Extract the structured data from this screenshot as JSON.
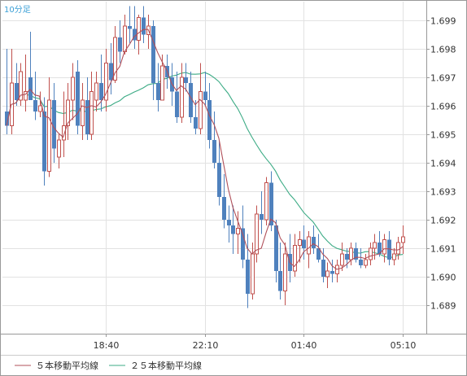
{
  "colors": {
    "up": "#c0504d",
    "down": "#4f81bd",
    "ma5": "#b0505a",
    "ma25": "#3cab85",
    "grid": "#e2e2e2",
    "frame": "#999999",
    "timeframe": "#3a9fd6"
  },
  "chart_data": {
    "type": "candlestick",
    "timeframe_label": "10分足",
    "ylim": [
      1.6882,
      1.6995
    ],
    "y_ticks": [
      "1.699",
      "1.698",
      "1.697",
      "1.696",
      "1.695",
      "1.694",
      "1.693",
      "1.692",
      "1.691",
      "1.690",
      "1.689"
    ],
    "x_ticks": [
      {
        "label": "18:40",
        "index": 21
      },
      {
        "label": "22:10",
        "index": 42
      },
      {
        "label": "01:40",
        "index": 63
      },
      {
        "label": "05:10",
        "index": 84
      }
    ],
    "legend": [
      {
        "label": "５本移動平均線",
        "color": "#b0505a"
      },
      {
        "label": "２５本移動平均線",
        "color": "#3cab85"
      }
    ],
    "candles": [
      [
        1.6958,
        1.698,
        1.695,
        1.6953
      ],
      [
        1.6953,
        1.698,
        1.695,
        1.6968
      ],
      [
        1.6968,
        1.6975,
        1.696,
        1.6962
      ],
      [
        1.6962,
        1.6975,
        1.696,
        1.6972
      ],
      [
        1.6962,
        1.6978,
        1.6958,
        1.6965
      ],
      [
        1.697,
        1.6986,
        1.6962,
        1.6962
      ],
      [
        1.6962,
        1.6972,
        1.6955,
        1.6958
      ],
      [
        1.6958,
        1.6965,
        1.6956,
        1.696
      ],
      [
        1.6958,
        1.6963,
        1.6932,
        1.6937
      ],
      [
        1.6937,
        1.697,
        1.6935,
        1.6962
      ],
      [
        1.6962,
        1.6968,
        1.694,
        1.6945
      ],
      [
        1.6942,
        1.695,
        1.6938,
        1.6948
      ],
      [
        1.6948,
        1.6965,
        1.6942,
        1.6953
      ],
      [
        1.6953,
        1.6968,
        1.6948,
        1.6962
      ],
      [
        1.6962,
        1.6975,
        1.6955,
        1.697
      ],
      [
        1.6972,
        1.6976,
        1.695,
        1.6953
      ],
      [
        1.6953,
        1.6968,
        1.6948,
        1.6962
      ],
      [
        1.6962,
        1.697,
        1.6948,
        1.695
      ],
      [
        1.695,
        1.6972,
        1.6948,
        1.6965
      ],
      [
        1.6962,
        1.6972,
        1.6958,
        1.6968
      ],
      [
        1.6968,
        1.6978,
        1.6958,
        1.6962
      ],
      [
        1.6962,
        1.698,
        1.6958,
        1.6975
      ],
      [
        1.6975,
        1.6982,
        1.6964,
        1.6969
      ],
      [
        1.6969,
        1.6988,
        1.6968,
        1.6984
      ],
      [
        1.6984,
        1.699,
        1.6975,
        1.6979
      ],
      [
        1.6979,
        1.6992,
        1.6978,
        1.6988
      ],
      [
        1.6988,
        1.6995,
        1.6982,
        1.6987
      ],
      [
        1.6987,
        1.6995,
        1.698,
        1.6983
      ],
      [
        1.6983,
        1.6992,
        1.6978,
        1.6991
      ],
      [
        1.6991,
        1.6995,
        1.6982,
        1.6985
      ],
      [
        1.6985,
        1.6992,
        1.698,
        1.6988
      ],
      [
        1.6988,
        1.699,
        1.6962,
        1.6968
      ],
      [
        1.6968,
        1.6975,
        1.6958,
        1.6962
      ],
      [
        1.6962,
        1.6978,
        1.6962,
        1.6974
      ],
      [
        1.6974,
        1.6978,
        1.6966,
        1.697
      ],
      [
        1.697,
        1.6975,
        1.696,
        1.6965
      ],
      [
        1.6965,
        1.6972,
        1.6954,
        1.6956
      ],
      [
        1.6956,
        1.6975,
        1.6954,
        1.697
      ],
      [
        1.697,
        1.6975,
        1.6965,
        1.6968
      ],
      [
        1.6968,
        1.6972,
        1.6954,
        1.6956
      ],
      [
        1.6956,
        1.6962,
        1.695,
        1.6952
      ],
      [
        1.6952,
        1.6975,
        1.695,
        1.6965
      ],
      [
        1.6965,
        1.6972,
        1.696,
        1.6962
      ],
      [
        1.6962,
        1.6968,
        1.6945,
        1.6948
      ],
      [
        1.6948,
        1.6958,
        1.6938,
        1.694
      ],
      [
        1.694,
        1.6948,
        1.6925,
        1.6928
      ],
      [
        1.6928,
        1.6936,
        1.6917,
        1.692
      ],
      [
        1.692,
        1.6925,
        1.6912,
        1.6918
      ],
      [
        1.6918,
        1.6925,
        1.6908,
        1.6915
      ],
      [
        1.6915,
        1.6923,
        1.6908,
        1.6917
      ],
      [
        1.6917,
        1.6925,
        1.6903,
        1.6906
      ],
      [
        1.6906,
        1.6915,
        1.6889,
        1.6894
      ],
      [
        1.6894,
        1.6912,
        1.6892,
        1.6908
      ],
      [
        1.6908,
        1.6925,
        1.6905,
        1.6922
      ],
      [
        1.6922,
        1.693,
        1.6915,
        1.692
      ],
      [
        1.692,
        1.6935,
        1.6918,
        1.6933
      ],
      [
        1.6933,
        1.6937,
        1.6916,
        1.6918
      ],
      [
        1.6918,
        1.692,
        1.6898,
        1.6902
      ],
      [
        1.6902,
        1.6912,
        1.6892,
        1.6895
      ],
      [
        1.6895,
        1.6912,
        1.689,
        1.6908
      ],
      [
        1.6908,
        1.6915,
        1.6898,
        1.6902
      ],
      [
        1.6902,
        1.6915,
        1.69,
        1.6911
      ],
      [
        1.6911,
        1.6916,
        1.6905,
        1.6913
      ],
      [
        1.6913,
        1.6918,
        1.6906,
        1.691
      ],
      [
        1.6908,
        1.6916,
        1.6903,
        1.6914
      ],
      [
        1.6914,
        1.6918,
        1.6908,
        1.691
      ],
      [
        1.691,
        1.6915,
        1.6905,
        1.6906
      ],
      [
        1.6906,
        1.691,
        1.6898,
        1.69
      ],
      [
        1.69,
        1.6905,
        1.6896,
        1.6902
      ],
      [
        1.6902,
        1.6906,
        1.6898,
        1.6901
      ],
      [
        1.6901,
        1.6906,
        1.6898,
        1.6904
      ],
      [
        1.6904,
        1.6912,
        1.6902,
        1.6908
      ],
      [
        1.6908,
        1.691,
        1.6903,
        1.6906
      ],
      [
        1.6906,
        1.6912,
        1.6904,
        1.691
      ],
      [
        1.691,
        1.6912,
        1.6905,
        1.6906
      ],
      [
        1.6906,
        1.691,
        1.6903,
        1.6904
      ],
      [
        1.6904,
        1.6908,
        1.6903,
        1.6906
      ],
      [
        1.6906,
        1.6912,
        1.6904,
        1.691
      ],
      [
        1.691,
        1.6915,
        1.6906,
        1.6912
      ],
      [
        1.6912,
        1.6916,
        1.6907,
        1.6908
      ],
      [
        1.6908,
        1.6915,
        1.6905,
        1.6913
      ],
      [
        1.6913,
        1.6916,
        1.6904,
        1.6906
      ],
      [
        1.6906,
        1.691,
        1.6904,
        1.6908
      ],
      [
        1.6908,
        1.6914,
        1.6906,
        1.6912
      ],
      [
        1.6912,
        1.6918,
        1.6908,
        1.6914
      ]
    ]
  }
}
